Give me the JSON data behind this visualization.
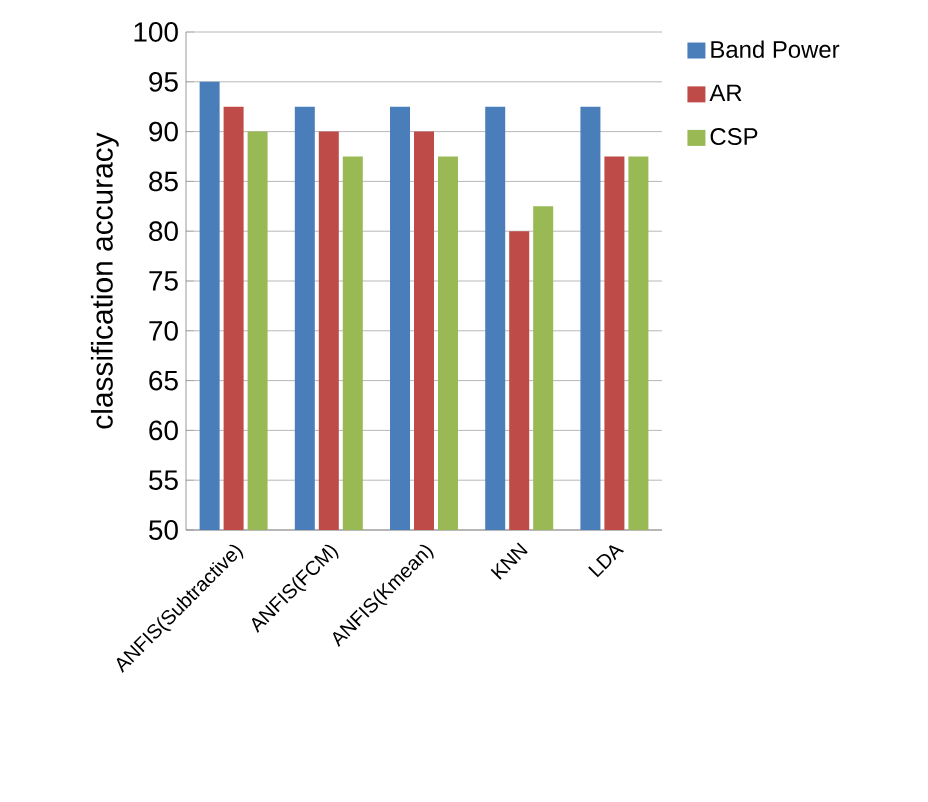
{
  "chart_data": {
    "type": "bar",
    "ylabel": "classification accuracy",
    "categories": [
      "ANFIS(Subtractive)",
      "ANFIS(FCM)",
      "ANFIS(Kmean)",
      "KNN",
      "LDA"
    ],
    "series": [
      {
        "name": "Band Power",
        "color": "#4a7ebb",
        "values": [
          95,
          92.5,
          92.5,
          92.5,
          92.5
        ]
      },
      {
        "name": "AR",
        "color": "#be4b48",
        "values": [
          92.5,
          90,
          90,
          80,
          87.5
        ]
      },
      {
        "name": "CSP",
        "color": "#98b954",
        "values": [
          90,
          87.5,
          87.5,
          82.5,
          87.5
        ]
      }
    ],
    "ylim": [
      50,
      100
    ],
    "yticks": [
      50,
      55,
      60,
      65,
      70,
      75,
      80,
      85,
      90,
      95,
      100
    ],
    "grid": "y",
    "legend": "top right"
  }
}
